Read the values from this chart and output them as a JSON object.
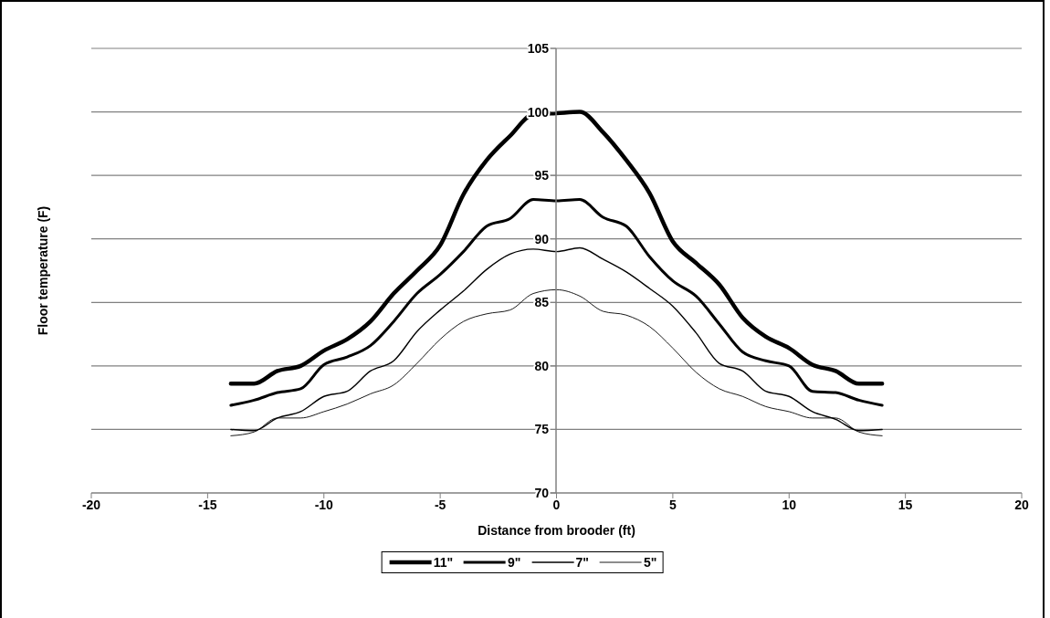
{
  "chart_data": {
    "type": "line",
    "xlabel": "Distance from brooder (ft)",
    "ylabel": "Floor temperature (F)",
    "x": [
      -14,
      -13,
      -12,
      -11,
      -10,
      -9,
      -8,
      -7,
      -6,
      -5,
      -4,
      -3,
      -2,
      -1,
      0,
      1,
      2,
      3,
      4,
      5,
      6,
      7,
      8,
      9,
      10,
      11,
      12,
      13,
      14
    ],
    "series": [
      {
        "name": "11\"",
        "color": "#000000",
        "values": [
          78.6,
          78.6,
          79.6,
          80.0,
          81.2,
          82.1,
          83.5,
          85.7,
          87.5,
          89.5,
          93.5,
          96.2,
          98.1,
          99.8,
          99.9,
          100.0,
          98.4,
          96.2,
          93.6,
          89.8,
          88.1,
          86.4,
          83.8,
          82.3,
          81.4,
          80.1,
          79.6,
          78.6,
          78.6
        ]
      },
      {
        "name": "9\"",
        "color": "#000000",
        "values": [
          76.9,
          77.3,
          77.9,
          78.2,
          80.1,
          80.7,
          81.6,
          83.5,
          85.7,
          87.2,
          89.0,
          91.0,
          91.6,
          93.1,
          93.0,
          93.1,
          91.7,
          91.0,
          88.6,
          86.7,
          85.5,
          83.3,
          81.1,
          80.4,
          80.0,
          78.0,
          77.9,
          77.3,
          76.9
        ]
      },
      {
        "name": "7\"",
        "color": "#000000",
        "values": [
          75.0,
          74.9,
          75.9,
          76.4,
          77.6,
          78.0,
          79.6,
          80.4,
          82.7,
          84.4,
          85.9,
          87.6,
          88.8,
          89.2,
          89.0,
          89.3,
          88.4,
          87.4,
          86.1,
          84.7,
          82.6,
          80.2,
          79.6,
          78.0,
          77.6,
          76.4,
          75.8,
          74.9,
          75.0
        ]
      },
      {
        "name": "5\"",
        "color": "#000000",
        "values": [
          74.5,
          74.8,
          75.9,
          75.9,
          76.4,
          77.0,
          77.8,
          78.5,
          80.2,
          82.1,
          83.5,
          84.1,
          84.4,
          85.7,
          86.0,
          85.5,
          84.3,
          84.0,
          83.1,
          81.4,
          79.5,
          78.2,
          77.6,
          76.8,
          76.4,
          75.9,
          75.9,
          74.8,
          74.5
        ]
      }
    ],
    "xlim": [
      -20,
      20
    ],
    "xticks": [
      -20,
      -15,
      -10,
      -5,
      0,
      5,
      10,
      15,
      20
    ],
    "ylim": [
      70,
      105
    ],
    "yticks": [
      70,
      75,
      80,
      85,
      90,
      95,
      100,
      105
    ],
    "grid": "y",
    "legend": "bottom",
    "marker": "none",
    "line_style": "solid"
  }
}
